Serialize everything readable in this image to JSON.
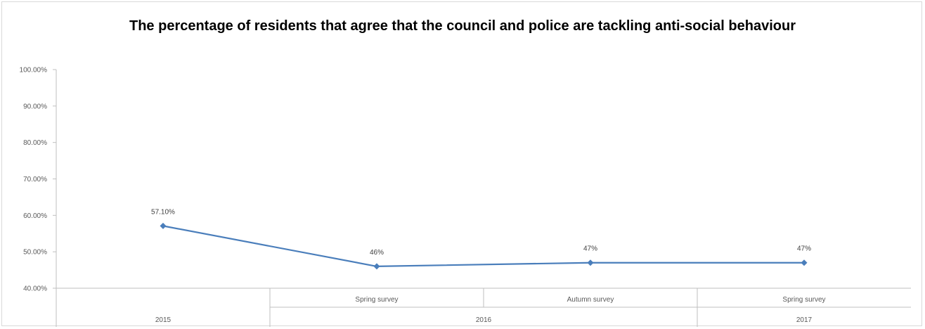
{
  "chart_data": {
    "type": "line",
    "title": "The percentage of residents that agree that the council and police are tackling anti-social behaviour",
    "xlabel": "",
    "ylabel": "",
    "ylim": [
      0.4,
      1.0
    ],
    "yticks": [
      "40.00%",
      "50.00%",
      "60.00%",
      "70.00%",
      "80.00%",
      "90.00%",
      "100.00%"
    ],
    "grid": false,
    "legend": "none",
    "categories": [
      {
        "sub": "",
        "group": "2015"
      },
      {
        "sub": "Spring survey",
        "group": "2016"
      },
      {
        "sub": "Autumn survey",
        "group": "2016"
      },
      {
        "sub": "Spring survey",
        "group": "2017"
      }
    ],
    "category_groups": [
      {
        "label": "2015",
        "span": 1
      },
      {
        "label": "2016",
        "span": 2
      },
      {
        "label": "2017",
        "span": 1
      }
    ],
    "series": [
      {
        "values": [
          0.571,
          0.46,
          0.47,
          0.47
        ],
        "data_labels": [
          "57.10%",
          "46%",
          "47%",
          "47%"
        ]
      }
    ],
    "colors": {
      "line": "#4a7ebb",
      "marker": "#4a7ebb",
      "axis": "#bfbfbf"
    }
  }
}
